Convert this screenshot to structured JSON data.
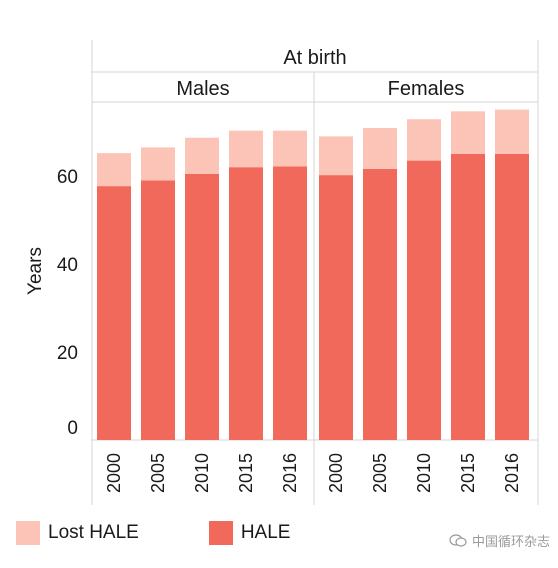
{
  "chart_data": {
    "type": "bar",
    "stacked": true,
    "header": "At birth",
    "panels": [
      {
        "name": "Males",
        "categories": [
          "2000",
          "2005",
          "2010",
          "2015",
          "2016"
        ],
        "series": [
          {
            "name": "HALE",
            "values": [
              57.7,
              59.0,
              60.5,
              62.0,
              62.2
            ]
          },
          {
            "name": "Lost HALE",
            "values": [
              7.5,
              7.5,
              8.2,
              8.3,
              8.1
            ]
          }
        ]
      },
      {
        "name": "Females",
        "categories": [
          "2000",
          "2005",
          "2010",
          "2015",
          "2016"
        ],
        "series": [
          {
            "name": "HALE",
            "values": [
              60.2,
              61.6,
              63.5,
              65.0,
              65.0
            ]
          },
          {
            "name": "Lost HALE",
            "values": [
              8.8,
              9.3,
              9.4,
              9.7,
              10.1
            ]
          }
        ]
      }
    ],
    "ylabel": "Years",
    "yticks": [
      0,
      20,
      40,
      60
    ],
    "ylim": [
      0,
      75
    ],
    "grid": false,
    "legend_position": "bottom-left",
    "colors": {
      "HALE": "#f0695a",
      "Lost HALE": "#fbc4b7",
      "separator": "#d4d4d4"
    }
  },
  "legend": [
    {
      "label": "Lost HALE",
      "color": "#fbc4b7"
    },
    {
      "label": "HALE",
      "color": "#f0695a"
    }
  ],
  "watermark": {
    "text": "中国循环杂志",
    "icon": "chat-bubble-icon"
  }
}
